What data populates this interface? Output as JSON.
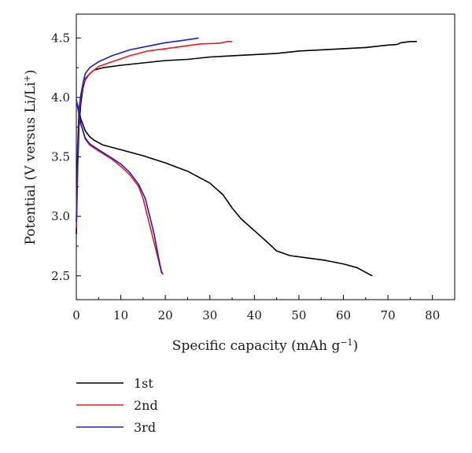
{
  "chart_data": {
    "type": "line",
    "xlabel": "Specific capacity (mAh g⁻¹)",
    "ylabel": "Potential (V versus Li/Li⁺)",
    "xlim": [
      0,
      85
    ],
    "ylim": [
      2.3,
      4.7
    ],
    "x_ticks": [
      0,
      10,
      20,
      30,
      40,
      50,
      60,
      70,
      80
    ],
    "y_ticks": [
      2.5,
      3.0,
      3.5,
      4.0,
      4.5
    ],
    "y_tick_labels": [
      "2.5",
      "3.0",
      "3.5",
      "4.0",
      "4.5"
    ],
    "grid": false,
    "legend_position": "bottom-left, below the plot",
    "series": [
      {
        "name": "1st",
        "color": "#000000",
        "charge": [
          [
            0,
            2.85
          ],
          [
            0.3,
            3.4
          ],
          [
            0.6,
            3.75
          ],
          [
            1,
            3.95
          ],
          [
            1.5,
            4.08
          ],
          [
            2,
            4.15
          ],
          [
            3,
            4.2
          ],
          [
            4,
            4.23
          ],
          [
            6,
            4.25
          ],
          [
            10,
            4.27
          ],
          [
            15,
            4.29
          ],
          [
            20,
            4.31
          ],
          [
            25,
            4.32
          ],
          [
            30,
            4.34
          ],
          [
            35,
            4.35
          ],
          [
            40,
            4.36
          ],
          [
            45,
            4.37
          ],
          [
            50,
            4.39
          ],
          [
            55,
            4.4
          ],
          [
            60,
            4.41
          ],
          [
            65,
            4.42
          ],
          [
            70,
            4.44
          ],
          [
            72,
            4.445
          ],
          [
            73,
            4.46
          ],
          [
            75,
            4.47
          ],
          [
            76.5,
            4.47
          ]
        ],
        "discharge": [
          [
            0,
            3.98
          ],
          [
            1,
            3.82
          ],
          [
            2,
            3.72
          ],
          [
            3,
            3.67
          ],
          [
            4,
            3.64
          ],
          [
            6,
            3.6
          ],
          [
            10,
            3.56
          ],
          [
            15,
            3.51
          ],
          [
            20,
            3.45
          ],
          [
            25,
            3.38
          ],
          [
            30,
            3.28
          ],
          [
            33,
            3.18
          ],
          [
            35,
            3.07
          ],
          [
            37,
            2.98
          ],
          [
            40,
            2.88
          ],
          [
            43,
            2.78
          ],
          [
            45,
            2.71
          ],
          [
            48,
            2.67
          ],
          [
            52,
            2.65
          ],
          [
            56,
            2.63
          ],
          [
            60,
            2.6
          ],
          [
            63,
            2.57
          ],
          [
            66.5,
            2.5
          ]
        ]
      },
      {
        "name": "2nd",
        "color": "#e02020",
        "charge": [
          [
            0,
            2.9
          ],
          [
            0.3,
            3.5
          ],
          [
            0.6,
            3.85
          ],
          [
            1,
            4.0
          ],
          [
            1.5,
            4.1
          ],
          [
            2,
            4.16
          ],
          [
            3,
            4.2
          ],
          [
            5,
            4.26
          ],
          [
            8,
            4.3
          ],
          [
            12,
            4.35
          ],
          [
            16,
            4.39
          ],
          [
            20,
            4.41
          ],
          [
            24,
            4.43
          ],
          [
            28,
            4.45
          ],
          [
            32,
            4.455
          ],
          [
            34,
            4.47
          ],
          [
            35,
            4.47
          ]
        ],
        "discharge": [
          [
            0,
            3.98
          ],
          [
            1,
            3.78
          ],
          [
            2,
            3.65
          ],
          [
            3,
            3.6
          ],
          [
            5,
            3.55
          ],
          [
            8,
            3.48
          ],
          [
            10,
            3.42
          ],
          [
            12,
            3.35
          ],
          [
            14,
            3.25
          ],
          [
            15,
            3.15
          ],
          [
            16,
            3.0
          ],
          [
            17,
            2.85
          ],
          [
            18,
            2.7
          ],
          [
            19,
            2.55
          ],
          [
            19.5,
            2.51
          ]
        ]
      },
      {
        "name": "3rd",
        "color": "#2020c0",
        "charge": [
          [
            0,
            2.95
          ],
          [
            0.3,
            3.6
          ],
          [
            0.6,
            3.9
          ],
          [
            1,
            4.02
          ],
          [
            1.5,
            4.12
          ],
          [
            2,
            4.2
          ],
          [
            3,
            4.25
          ],
          [
            5,
            4.3
          ],
          [
            8,
            4.35
          ],
          [
            12,
            4.4
          ],
          [
            16,
            4.43
          ],
          [
            20,
            4.46
          ],
          [
            24,
            4.48
          ],
          [
            27.5,
            4.5
          ]
        ],
        "discharge": [
          [
            0,
            3.98
          ],
          [
            1,
            3.78
          ],
          [
            2,
            3.66
          ],
          [
            3,
            3.61
          ],
          [
            5,
            3.56
          ],
          [
            8,
            3.49
          ],
          [
            10,
            3.44
          ],
          [
            12,
            3.37
          ],
          [
            14,
            3.27
          ],
          [
            15.5,
            3.15
          ],
          [
            16.5,
            3.0
          ],
          [
            17.5,
            2.85
          ],
          [
            18.5,
            2.65
          ],
          [
            19.2,
            2.52
          ]
        ]
      }
    ]
  }
}
